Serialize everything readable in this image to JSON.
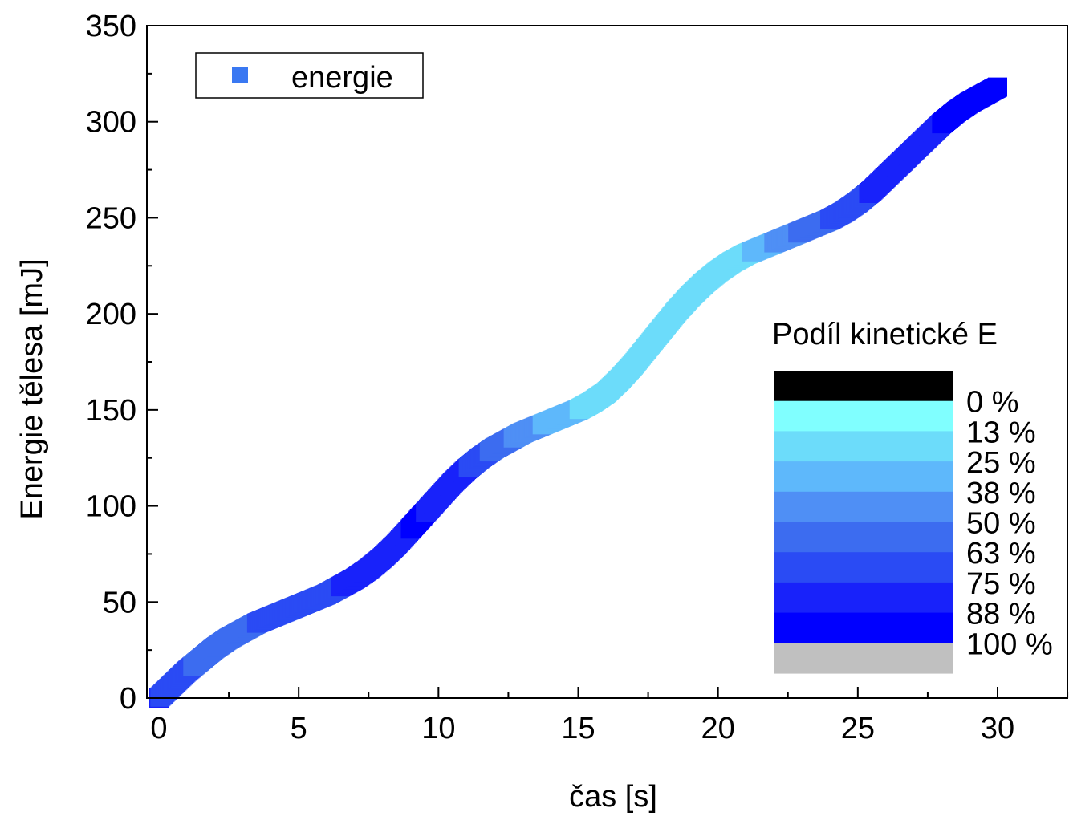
{
  "chart_data": {
    "type": "scatter",
    "title": "",
    "xlabel": "čas [s]",
    "ylabel": "Energie tělesa [mJ]",
    "xlim": [
      0,
      32.5
    ],
    "ylim": [
      0,
      350
    ],
    "xticks": [
      0,
      5,
      10,
      15,
      20,
      25,
      30
    ],
    "yticks": [
      0,
      50,
      100,
      150,
      200,
      250,
      300,
      350
    ],
    "grid": false,
    "legend": {
      "position": "top-left",
      "entries": [
        {
          "label": "energie",
          "color": "#3a78f2"
        }
      ]
    },
    "series": [
      {
        "name": "energie",
        "marker": "square",
        "x": [
          0,
          0.5,
          1,
          1.5,
          2,
          2.5,
          3,
          3.5,
          4,
          4.5,
          5,
          5.5,
          6,
          6.5,
          7,
          7.5,
          8,
          8.5,
          9,
          9.5,
          10,
          10.5,
          11,
          11.5,
          12,
          12.5,
          13,
          13.5,
          14,
          14.5,
          15,
          15.5,
          16,
          16.5,
          17,
          17.5,
          18,
          18.5,
          19,
          19.5,
          20,
          20.5,
          21,
          21.5,
          22,
          22.5,
          23,
          23.5,
          24,
          24.5,
          25,
          25.5,
          26,
          26.5,
          27,
          27.5,
          28,
          28.5,
          29,
          29.5,
          30
        ],
        "y": [
          0,
          7,
          14,
          20,
          26,
          31,
          35,
          39,
          42,
          45,
          48,
          51,
          54,
          58,
          62,
          67,
          73,
          80,
          88,
          96,
          104,
          112,
          119,
          125,
          130,
          134,
          138,
          141,
          144,
          147,
          150,
          154,
          159,
          166,
          174,
          183,
          192,
          201,
          209,
          216,
          222,
          227,
          231,
          234,
          237,
          240,
          243,
          246,
          249,
          253,
          258,
          264,
          271,
          278,
          285,
          292,
          299,
          305,
          310,
          314,
          318
        ],
        "kinetic_share_pct": [
          75,
          70,
          65,
          60,
          60,
          60,
          60,
          63,
          63,
          67,
          70,
          72,
          74,
          75,
          78,
          82,
          85,
          87,
          88,
          88,
          86,
          82,
          76,
          68,
          60,
          52,
          46,
          40,
          35,
          30,
          25,
          20,
          15,
          13,
          13,
          13,
          13,
          13,
          13,
          13,
          14,
          17,
          22,
          30,
          38,
          45,
          52,
          58,
          63,
          68,
          72,
          76,
          80,
          82,
          84,
          86,
          88,
          88,
          88,
          90,
          90
        ]
      }
    ],
    "colorbar": {
      "title": "Podíl kinetické E",
      "labels": [
        "0 %",
        "13 %",
        "25 %",
        "38 %",
        "50 %",
        "63 %",
        "75 %",
        "88 %",
        "100 %"
      ],
      "colors": [
        "#000000",
        "#80ffff",
        "#6cdcfa",
        "#5eb8fb",
        "#4f8ff5",
        "#3c6cf0",
        "#2a4bf4",
        "#1822fa",
        "#0000ff",
        "#c0c0c0"
      ]
    }
  }
}
